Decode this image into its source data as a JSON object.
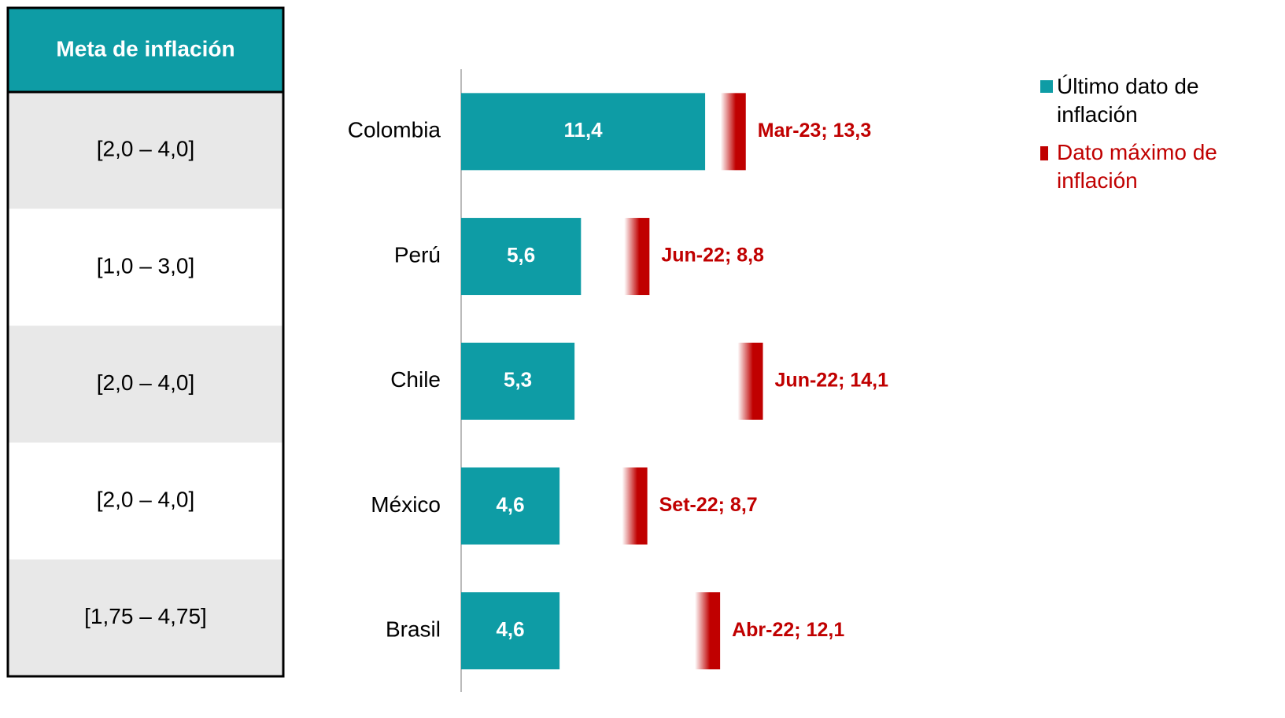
{
  "table": {
    "header": "Meta de inflación",
    "rows": [
      "[2,0 – 4,0]",
      "[1,0 – 3,0]",
      "[2,0 – 4,0]",
      "[2,0 – 4,0]",
      "[1,75 – 4,75]"
    ]
  },
  "chart_data": {
    "type": "hbar",
    "categories": [
      "Colombia",
      "Perú",
      "Chile",
      "México",
      "Brasil"
    ],
    "xlim": [
      0,
      15
    ],
    "series": [
      {
        "name": "Último dato de inflación",
        "color": "#0e9ca5",
        "values": [
          11.4,
          5.6,
          5.3,
          4.6,
          4.6
        ],
        "value_labels": [
          "11,4",
          "5,6",
          "5,3",
          "4,6",
          "4,6"
        ]
      },
      {
        "name": "Dato máximo de inflación",
        "color": "#c00000",
        "values": [
          13.3,
          8.8,
          14.1,
          8.7,
          12.1
        ],
        "value_labels": [
          "Mar-23; 13,3",
          "Jun-22; 8,8",
          "Jun-22; 14,1",
          "Set-22; 8,7",
          "Abr-22; 12,1"
        ]
      }
    ]
  }
}
